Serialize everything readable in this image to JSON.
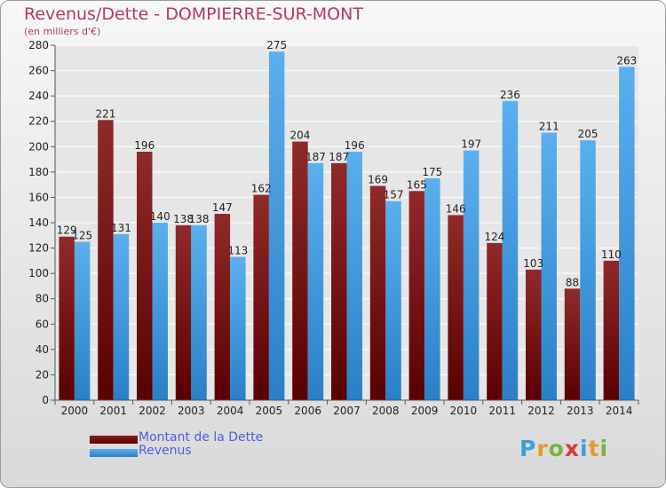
{
  "header": {
    "title": "Revenus/Dette - DOMPIERRE-SUR-MONT",
    "subtitle": "(en milliers d'€)"
  },
  "chart_data": {
    "type": "bar",
    "categories": [
      "2000",
      "2001",
      "2002",
      "2003",
      "2004",
      "2005",
      "2006",
      "2007",
      "2008",
      "2009",
      "2010",
      "2011",
      "2012",
      "2013",
      "2014"
    ],
    "series": [
      {
        "name": "Montant de la Dette",
        "color": "#8b1a1a",
        "values": [
          129,
          221,
          196,
          138,
          147,
          162,
          204,
          187,
          169,
          165,
          146,
          124,
          103,
          88,
          110
        ]
      },
      {
        "name": "Revenus",
        "color": "#3a9de6",
        "values": [
          125,
          131,
          140,
          138,
          113,
          275,
          187,
          196,
          157,
          175,
          197,
          236,
          211,
          205,
          263
        ]
      }
    ],
    "ylim": [
      0,
      280
    ],
    "yticks": [
      0,
      20,
      40,
      60,
      80,
      100,
      120,
      140,
      160,
      180,
      200,
      220,
      240,
      260,
      280
    ],
    "grid": true,
    "legend_position": "bottom-left"
  },
  "legend": {
    "items": [
      {
        "label": "Montant de la Dette",
        "color": "#8b1a1a"
      },
      {
        "label": "Revenus",
        "color": "#3a9de6"
      }
    ]
  },
  "logo": {
    "name": "proxiti-logo",
    "letters": [
      {
        "char": "P",
        "color": "#3aa0d8"
      },
      {
        "char": "r",
        "color": "#e69a2a"
      },
      {
        "char": "o",
        "color": "#7ab33a"
      },
      {
        "char": "x",
        "color": "#d93b3b"
      },
      {
        "char": "i",
        "color": "#3aa0d8"
      },
      {
        "char": "t",
        "color": "#e69a2a"
      },
      {
        "char": "i",
        "color": "#7ab33a"
      }
    ]
  }
}
